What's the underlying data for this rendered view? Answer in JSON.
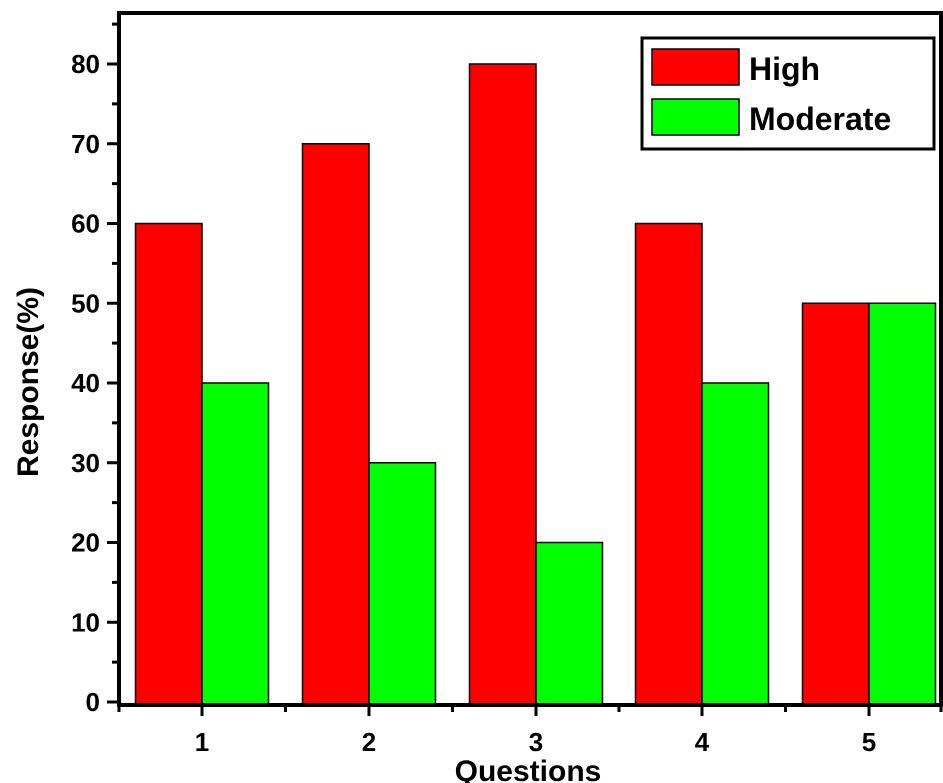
{
  "chart_data": {
    "type": "bar",
    "title": "",
    "xlabel": "Questions",
    "ylabel": "Response(%)",
    "categories": [
      "1",
      "2",
      "3",
      "4",
      "5"
    ],
    "series": [
      {
        "name": "High",
        "color": "#ff0000",
        "values": [
          60,
          70,
          80,
          60,
          50
        ]
      },
      {
        "name": "Moderate",
        "color": "#00ff00",
        "values": [
          40,
          30,
          20,
          40,
          50
        ]
      }
    ],
    "ylim": [
      0,
      86
    ],
    "yticks": [
      0,
      10,
      20,
      30,
      40,
      50,
      60,
      70,
      80
    ],
    "legend_position": "top-right",
    "grid": false
  }
}
